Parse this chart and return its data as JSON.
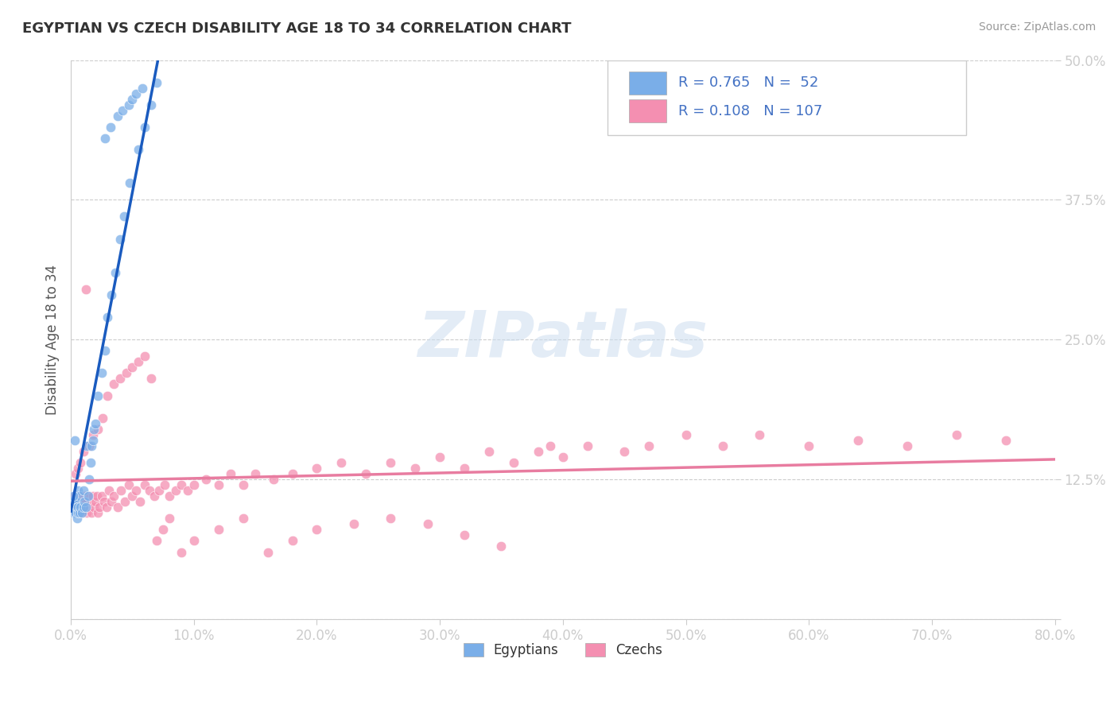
{
  "title": "EGYPTIAN VS CZECH DISABILITY AGE 18 TO 34 CORRELATION CHART",
  "source": "Source: ZipAtlas.com",
  "ylabel": "Disability Age 18 to 34",
  "xlim": [
    0.0,
    0.8
  ],
  "ylim": [
    0.0,
    0.5
  ],
  "yticks": [
    0.0,
    0.125,
    0.25,
    0.375,
    0.5
  ],
  "ytick_labels": [
    "",
    "12.5%",
    "25.0%",
    "37.5%",
    "50.0%"
  ],
  "xtick_labels": [
    "0.0%",
    "10.0%",
    "20.0%",
    "30.0%",
    "40.0%",
    "50.0%",
    "60.0%",
    "70.0%",
    "80.0%"
  ],
  "xticks": [
    0.0,
    0.1,
    0.2,
    0.3,
    0.4,
    0.5,
    0.6,
    0.7,
    0.8
  ],
  "egyptian_color": "#7aaee8",
  "czech_color": "#f48fb1",
  "egyptian_line_color": "#1a5bbf",
  "czech_line_color": "#e87ca0",
  "watermark": "ZIPatlas",
  "R_egyptian": 0.765,
  "N_egyptian": 52,
  "R_czech": 0.108,
  "N_czech": 107,
  "egyptian_x": [
    0.001,
    0.001,
    0.002,
    0.002,
    0.003,
    0.003,
    0.004,
    0.004,
    0.005,
    0.005,
    0.006,
    0.006,
    0.006,
    0.007,
    0.007,
    0.008,
    0.009,
    0.01,
    0.01,
    0.011,
    0.012,
    0.013,
    0.014,
    0.015,
    0.016,
    0.017,
    0.018,
    0.019,
    0.02,
    0.022,
    0.025,
    0.028,
    0.03,
    0.033,
    0.036,
    0.04,
    0.043,
    0.048,
    0.055,
    0.06,
    0.065,
    0.07,
    0.028,
    0.032,
    0.038,
    0.042,
    0.047,
    0.05,
    0.053,
    0.058,
    0.002,
    0.003
  ],
  "egyptian_y": [
    0.095,
    0.105,
    0.095,
    0.1,
    0.095,
    0.105,
    0.095,
    0.105,
    0.09,
    0.1,
    0.095,
    0.1,
    0.115,
    0.095,
    0.11,
    0.1,
    0.095,
    0.1,
    0.115,
    0.105,
    0.1,
    0.155,
    0.11,
    0.125,
    0.14,
    0.155,
    0.16,
    0.17,
    0.175,
    0.2,
    0.22,
    0.24,
    0.27,
    0.29,
    0.31,
    0.34,
    0.36,
    0.39,
    0.42,
    0.44,
    0.46,
    0.48,
    0.43,
    0.44,
    0.45,
    0.455,
    0.46,
    0.465,
    0.47,
    0.475,
    0.11,
    0.16
  ],
  "czech_x": [
    0.001,
    0.002,
    0.003,
    0.005,
    0.006,
    0.007,
    0.008,
    0.009,
    0.01,
    0.011,
    0.012,
    0.013,
    0.014,
    0.015,
    0.016,
    0.017,
    0.018,
    0.019,
    0.02,
    0.021,
    0.022,
    0.023,
    0.025,
    0.027,
    0.029,
    0.031,
    0.033,
    0.035,
    0.038,
    0.041,
    0.044,
    0.047,
    0.05,
    0.053,
    0.056,
    0.06,
    0.064,
    0.068,
    0.072,
    0.076,
    0.08,
    0.085,
    0.09,
    0.095,
    0.1,
    0.11,
    0.12,
    0.13,
    0.14,
    0.15,
    0.165,
    0.18,
    0.2,
    0.22,
    0.24,
    0.26,
    0.28,
    0.3,
    0.32,
    0.34,
    0.36,
    0.38,
    0.4,
    0.42,
    0.45,
    0.47,
    0.5,
    0.53,
    0.56,
    0.6,
    0.64,
    0.68,
    0.72,
    0.76,
    0.004,
    0.006,
    0.008,
    0.01,
    0.012,
    0.015,
    0.018,
    0.022,
    0.026,
    0.03,
    0.035,
    0.04,
    0.045,
    0.05,
    0.055,
    0.06,
    0.065,
    0.07,
    0.075,
    0.08,
    0.09,
    0.1,
    0.12,
    0.14,
    0.16,
    0.18,
    0.2,
    0.23,
    0.26,
    0.29,
    0.32,
    0.35,
    0.39
  ],
  "czech_y": [
    0.105,
    0.1,
    0.11,
    0.105,
    0.1,
    0.11,
    0.105,
    0.095,
    0.105,
    0.11,
    0.105,
    0.095,
    0.1,
    0.11,
    0.105,
    0.095,
    0.11,
    0.1,
    0.105,
    0.11,
    0.095,
    0.1,
    0.11,
    0.105,
    0.1,
    0.115,
    0.105,
    0.11,
    0.1,
    0.115,
    0.105,
    0.12,
    0.11,
    0.115,
    0.105,
    0.12,
    0.115,
    0.11,
    0.115,
    0.12,
    0.11,
    0.115,
    0.12,
    0.115,
    0.12,
    0.125,
    0.12,
    0.13,
    0.12,
    0.13,
    0.125,
    0.13,
    0.135,
    0.14,
    0.13,
    0.14,
    0.135,
    0.145,
    0.135,
    0.15,
    0.14,
    0.15,
    0.145,
    0.155,
    0.15,
    0.155,
    0.165,
    0.155,
    0.165,
    0.155,
    0.16,
    0.155,
    0.165,
    0.16,
    0.13,
    0.135,
    0.14,
    0.15,
    0.295,
    0.155,
    0.165,
    0.17,
    0.18,
    0.2,
    0.21,
    0.215,
    0.22,
    0.225,
    0.23,
    0.235,
    0.215,
    0.07,
    0.08,
    0.09,
    0.06,
    0.07,
    0.08,
    0.09,
    0.06,
    0.07,
    0.08,
    0.085,
    0.09,
    0.085,
    0.075,
    0.065,
    0.155
  ]
}
